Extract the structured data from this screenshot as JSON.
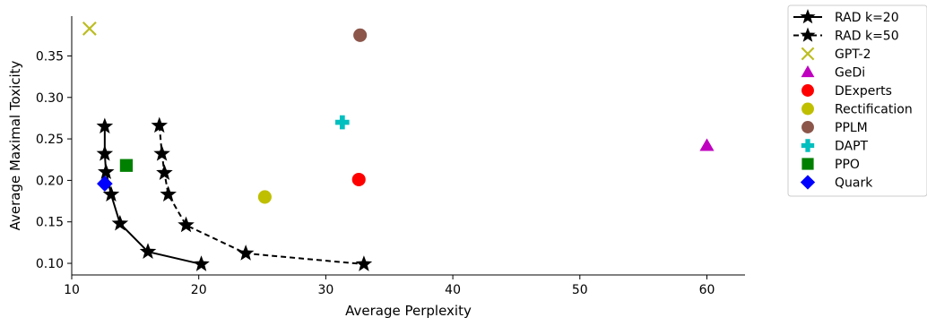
{
  "chart_data": {
    "type": "scatter",
    "title": "",
    "xlabel": "Average Perplexity",
    "ylabel": "Average Maximal Toxicity",
    "xlim": [
      10,
      63
    ],
    "ylim": [
      0.086,
      0.398
    ],
    "xticks": [
      10,
      20,
      30,
      40,
      50,
      60
    ],
    "yticks": [
      0.1,
      0.15,
      0.2,
      0.25,
      0.3,
      0.35
    ],
    "ytick_labels": [
      "0.10",
      "0.15",
      "0.20",
      "0.25",
      "0.30",
      "0.35"
    ],
    "grid": false,
    "legend_position": "outside-right",
    "series": [
      {
        "name": "RAD k=20",
        "kind": "line",
        "dash": "solid",
        "color": "#000000",
        "marker": "star",
        "x": [
          12.6,
          12.6,
          12.7,
          13.1,
          13.8,
          16.0,
          20.2
        ],
        "y": [
          0.265,
          0.232,
          0.21,
          0.183,
          0.148,
          0.114,
          0.099
        ]
      },
      {
        "name": "RAD k=50",
        "kind": "line",
        "dash": "dashed",
        "color": "#000000",
        "marker": "star",
        "x": [
          16.9,
          17.1,
          17.3,
          17.6,
          19.0,
          23.7,
          33.0
        ],
        "y": [
          0.266,
          0.232,
          0.209,
          0.183,
          0.146,
          0.112,
          0.099
        ]
      },
      {
        "name": "GPT-2",
        "kind": "point",
        "color": "#bcbd22",
        "marker": "x",
        "x": [
          11.4
        ],
        "y": [
          0.383
        ]
      },
      {
        "name": "GeDi",
        "kind": "point",
        "color": "#bf00bf",
        "marker": "triangle",
        "x": [
          60.0
        ],
        "y": [
          0.242
        ]
      },
      {
        "name": "DExperts",
        "kind": "point",
        "color": "#ff0000",
        "marker": "circle",
        "x": [
          32.6
        ],
        "y": [
          0.201
        ]
      },
      {
        "name": "Rectification",
        "kind": "point",
        "color": "#bfbf00",
        "marker": "circle",
        "x": [
          25.2
        ],
        "y": [
          0.18
        ]
      },
      {
        "name": "PPLM",
        "kind": "point",
        "color": "#8c564b",
        "marker": "circle",
        "x": [
          32.7
        ],
        "y": [
          0.375
        ]
      },
      {
        "name": "DAPT",
        "kind": "point",
        "color": "#00bfbf",
        "marker": "plus",
        "x": [
          31.3
        ],
        "y": [
          0.27
        ]
      },
      {
        "name": "PPO",
        "kind": "point",
        "color": "#008000",
        "marker": "square",
        "x": [
          14.3
        ],
        "y": [
          0.218
        ]
      },
      {
        "name": "Quark",
        "kind": "point",
        "color": "#0000ff",
        "marker": "diamond",
        "x": [
          12.6
        ],
        "y": [
          0.196
        ]
      }
    ]
  }
}
